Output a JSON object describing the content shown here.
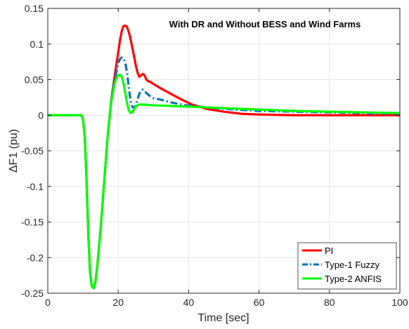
{
  "chart_data": {
    "type": "line",
    "annotation": "With DR and Without BESS and Wind Farms",
    "xlabel": "Time [sec]",
    "ylabel": "ΔF1 (pu)",
    "xlim": [
      0,
      100
    ],
    "ylim": [
      -0.25,
      0.15
    ],
    "xticks": [
      0,
      20,
      40,
      60,
      80,
      100
    ],
    "yticks": [
      -0.25,
      -0.2,
      -0.15,
      -0.1,
      -0.05,
      0,
      0.05,
      0.1,
      0.15
    ],
    "xtick_labels": [
      "0",
      "20",
      "40",
      "60",
      "80",
      "100"
    ],
    "ytick_labels": [
      "-0.25",
      "-0.2",
      "-0.15",
      "-0.1",
      "-0.05",
      "0",
      "0.05",
      "0.1",
      "0.15"
    ],
    "grid": true,
    "legend_position": "bottom-right",
    "series": [
      {
        "name": "PI",
        "color": "#ff0000",
        "dash": "solid",
        "x": [
          0,
          9.5,
          10,
          10.5,
          11,
          11.5,
          12,
          12.5,
          13,
          13.5,
          14,
          15,
          16,
          17,
          18,
          19,
          20,
          20.5,
          21,
          21.5,
          22,
          22.5,
          23,
          23.5,
          24,
          24.5,
          25,
          25.5,
          26,
          26.5,
          27,
          27.5,
          28,
          28.5,
          29,
          30,
          32,
          35,
          38,
          41,
          45,
          50,
          55,
          60,
          70,
          80,
          90,
          100
        ],
        "y": [
          0,
          0,
          -0.005,
          -0.03,
          -0.09,
          -0.165,
          -0.22,
          -0.24,
          -0.243,
          -0.235,
          -0.215,
          -0.16,
          -0.095,
          -0.03,
          0.02,
          0.055,
          0.088,
          0.105,
          0.118,
          0.125,
          0.126,
          0.124,
          0.117,
          0.107,
          0.095,
          0.083,
          0.07,
          0.06,
          0.054,
          0.056,
          0.058,
          0.056,
          0.05,
          0.048,
          0.047,
          0.044,
          0.038,
          0.03,
          0.022,
          0.015,
          0.009,
          0.005,
          0.002,
          0.001,
          0.0,
          0.0,
          0.0,
          0.0
        ]
      },
      {
        "name": "Type-1 Fuzzy",
        "color": "#0072bd",
        "dash": "dashdot",
        "x": [
          0,
          9.5,
          10,
          10.5,
          11,
          11.5,
          12,
          12.5,
          13,
          13.5,
          14,
          15,
          16,
          17,
          18,
          19,
          20,
          20.5,
          21,
          21.5,
          22,
          22.5,
          23,
          23.5,
          24,
          24.5,
          25,
          25.5,
          26,
          26.5,
          27,
          27.5,
          28,
          29,
          30,
          32,
          35,
          38,
          41,
          45,
          50,
          60,
          70,
          80,
          90,
          100
        ],
        "y": [
          0,
          0,
          -0.005,
          -0.03,
          -0.09,
          -0.165,
          -0.22,
          -0.24,
          -0.243,
          -0.235,
          -0.215,
          -0.16,
          -0.095,
          -0.03,
          0.02,
          0.05,
          0.072,
          0.079,
          0.081,
          0.08,
          0.074,
          0.06,
          0.04,
          0.02,
          0.012,
          0.01,
          0.014,
          0.022,
          0.03,
          0.035,
          0.036,
          0.034,
          0.031,
          0.027,
          0.024,
          0.022,
          0.018,
          0.015,
          0.013,
          0.011,
          0.009,
          0.006,
          0.005,
          0.004,
          0.003,
          0.002
        ]
      },
      {
        "name": "Type-2 ANFIS",
        "color": "#00ff00",
        "dash": "solid",
        "x": [
          0,
          9.5,
          10,
          10.5,
          11,
          11.5,
          12,
          12.5,
          13,
          13.5,
          14,
          15,
          16,
          17,
          18,
          19,
          19.5,
          20,
          20.5,
          21,
          21.5,
          22,
          22.5,
          23,
          23.5,
          24,
          24.5,
          25,
          25.5,
          26,
          27,
          30,
          35,
          40,
          45,
          50,
          60,
          70,
          80,
          90,
          100
        ],
        "y": [
          0,
          0,
          -0.005,
          -0.03,
          -0.09,
          -0.165,
          -0.22,
          -0.24,
          -0.243,
          -0.235,
          -0.215,
          -0.16,
          -0.095,
          -0.03,
          0.018,
          0.045,
          0.052,
          0.056,
          0.057,
          0.054,
          0.045,
          0.031,
          0.017,
          0.007,
          0.003,
          0.004,
          0.008,
          0.012,
          0.014,
          0.015,
          0.015,
          0.014,
          0.013,
          0.012,
          0.011,
          0.01,
          0.008,
          0.006,
          0.005,
          0.004,
          0.003
        ]
      }
    ]
  }
}
